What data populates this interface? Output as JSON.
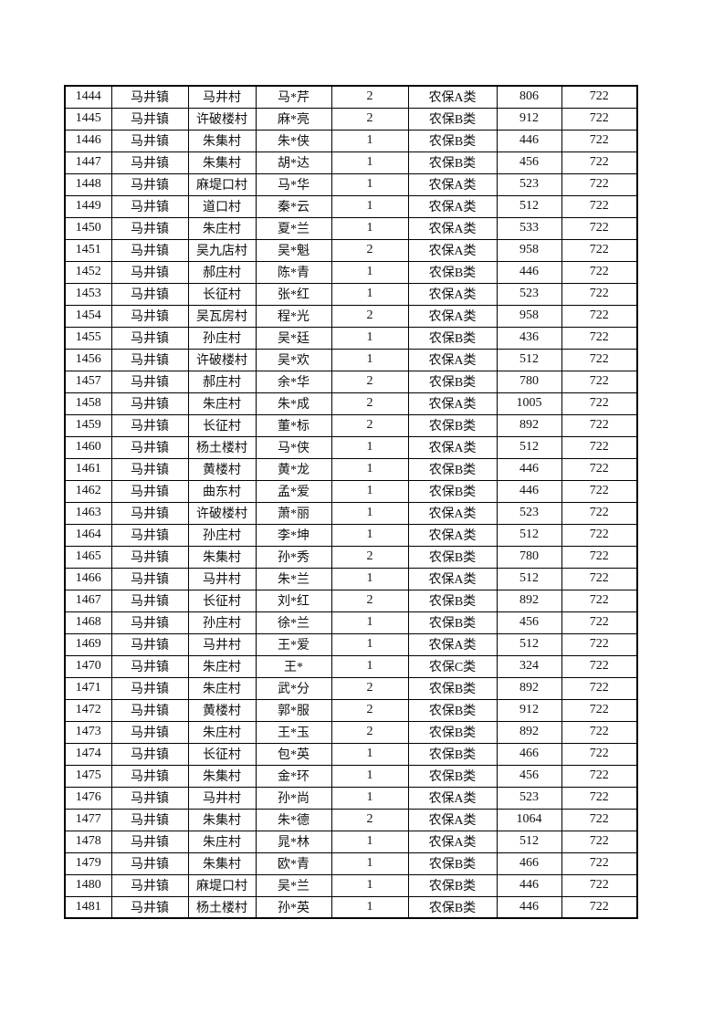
{
  "page": {
    "background": "#ffffff",
    "text_color": "#111111",
    "border_color": "#000000"
  },
  "table": {
    "rows": [
      [
        "1444",
        "马井镇",
        "马井村",
        "马*芹",
        "2",
        "农保A类",
        "806",
        "722"
      ],
      [
        "1445",
        "马井镇",
        "许破楼村",
        "麻*亮",
        "2",
        "农保B类",
        "912",
        "722"
      ],
      [
        "1446",
        "马井镇",
        "朱集村",
        "朱*侠",
        "1",
        "农保B类",
        "446",
        "722"
      ],
      [
        "1447",
        "马井镇",
        "朱集村",
        "胡*达",
        "1",
        "农保B类",
        "456",
        "722"
      ],
      [
        "1448",
        "马井镇",
        "麻堤口村",
        "马*华",
        "1",
        "农保A类",
        "523",
        "722"
      ],
      [
        "1449",
        "马井镇",
        "道口村",
        "秦*云",
        "1",
        "农保A类",
        "512",
        "722"
      ],
      [
        "1450",
        "马井镇",
        "朱庄村",
        "夏*兰",
        "1",
        "农保A类",
        "533",
        "722"
      ],
      [
        "1451",
        "马井镇",
        "吴九店村",
        "吴*魁",
        "2",
        "农保A类",
        "958",
        "722"
      ],
      [
        "1452",
        "马井镇",
        "郝庄村",
        "陈*青",
        "1",
        "农保B类",
        "446",
        "722"
      ],
      [
        "1453",
        "马井镇",
        "长征村",
        "张*红",
        "1",
        "农保A类",
        "523",
        "722"
      ],
      [
        "1454",
        "马井镇",
        "吴瓦房村",
        "程*光",
        "2",
        "农保A类",
        "958",
        "722"
      ],
      [
        "1455",
        "马井镇",
        "孙庄村",
        "吴*廷",
        "1",
        "农保B类",
        "436",
        "722"
      ],
      [
        "1456",
        "马井镇",
        "许破楼村",
        "吴*欢",
        "1",
        "农保A类",
        "512",
        "722"
      ],
      [
        "1457",
        "马井镇",
        "郝庄村",
        "余*华",
        "2",
        "农保B类",
        "780",
        "722"
      ],
      [
        "1458",
        "马井镇",
        "朱庄村",
        "朱*成",
        "2",
        "农保A类",
        "1005",
        "722"
      ],
      [
        "1459",
        "马井镇",
        "长征村",
        "董*标",
        "2",
        "农保B类",
        "892",
        "722"
      ],
      [
        "1460",
        "马井镇",
        "杨土楼村",
        "马*侠",
        "1",
        "农保A类",
        "512",
        "722"
      ],
      [
        "1461",
        "马井镇",
        "黄楼村",
        "黄*龙",
        "1",
        "农保B类",
        "446",
        "722"
      ],
      [
        "1462",
        "马井镇",
        "曲东村",
        "孟*爱",
        "1",
        "农保B类",
        "446",
        "722"
      ],
      [
        "1463",
        "马井镇",
        "许破楼村",
        "萧*丽",
        "1",
        "农保A类",
        "523",
        "722"
      ],
      [
        "1464",
        "马井镇",
        "孙庄村",
        "李*坤",
        "1",
        "农保A类",
        "512",
        "722"
      ],
      [
        "1465",
        "马井镇",
        "朱集村",
        "孙*秀",
        "2",
        "农保B类",
        "780",
        "722"
      ],
      [
        "1466",
        "马井镇",
        "马井村",
        "朱*兰",
        "1",
        "农保A类",
        "512",
        "722"
      ],
      [
        "1467",
        "马井镇",
        "长征村",
        "刘*红",
        "2",
        "农保B类",
        "892",
        "722"
      ],
      [
        "1468",
        "马井镇",
        "孙庄村",
        "徐*兰",
        "1",
        "农保B类",
        "456",
        "722"
      ],
      [
        "1469",
        "马井镇",
        "马井村",
        "王*爱",
        "1",
        "农保A类",
        "512",
        "722"
      ],
      [
        "1470",
        "马井镇",
        "朱庄村",
        "王*",
        "1",
        "农保C类",
        "324",
        "722"
      ],
      [
        "1471",
        "马井镇",
        "朱庄村",
        "武*分",
        "2",
        "农保B类",
        "892",
        "722"
      ],
      [
        "1472",
        "马井镇",
        "黄楼村",
        "郭*服",
        "2",
        "农保B类",
        "912",
        "722"
      ],
      [
        "1473",
        "马井镇",
        "朱庄村",
        "王*玉",
        "2",
        "农保B类",
        "892",
        "722"
      ],
      [
        "1474",
        "马井镇",
        "长征村",
        "包*英",
        "1",
        "农保B类",
        "466",
        "722"
      ],
      [
        "1475",
        "马井镇",
        "朱集村",
        "金*环",
        "1",
        "农保B类",
        "456",
        "722"
      ],
      [
        "1476",
        "马井镇",
        "马井村",
        "孙*尚",
        "1",
        "农保A类",
        "523",
        "722"
      ],
      [
        "1477",
        "马井镇",
        "朱集村",
        "朱*德",
        "2",
        "农保A类",
        "1064",
        "722"
      ],
      [
        "1478",
        "马井镇",
        "朱庄村",
        "晁*林",
        "1",
        "农保A类",
        "512",
        "722"
      ],
      [
        "1479",
        "马井镇",
        "朱集村",
        "欧*青",
        "1",
        "农保B类",
        "466",
        "722"
      ],
      [
        "1480",
        "马井镇",
        "麻堤口村",
        "吴*兰",
        "1",
        "农保B类",
        "446",
        "722"
      ],
      [
        "1481",
        "马井镇",
        "杨土楼村",
        "孙*英",
        "1",
        "农保B类",
        "446",
        "722"
      ]
    ]
  }
}
